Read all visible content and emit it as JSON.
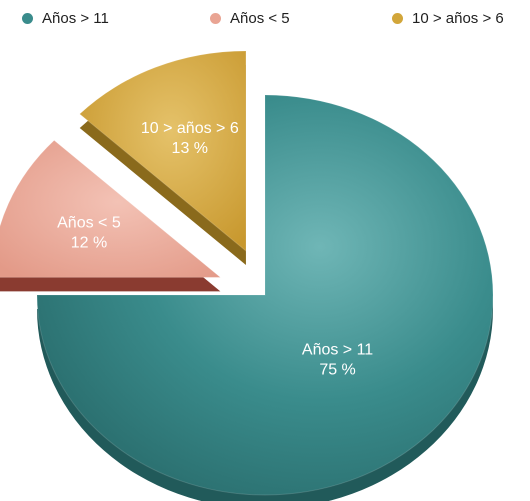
{
  "chart_data": {
    "type": "pie",
    "style": "3d-exploded",
    "legend_position": "top",
    "slices": [
      {
        "label": "Años > 11",
        "value": 75,
        "value_label": "75 %",
        "color": "#3a8c8c",
        "side_color": "#215a5a",
        "exploded": false
      },
      {
        "label": "Años < 5",
        "value": 12,
        "value_label": "12 %",
        "color": "#e9a493",
        "side_color": "#8a3b30",
        "exploded": true
      },
      {
        "label": "10 > años > 6",
        "value": 13,
        "value_label": "13 %",
        "color": "#d2a63a",
        "side_color": "#8a6a1c",
        "exploded": true
      }
    ]
  }
}
